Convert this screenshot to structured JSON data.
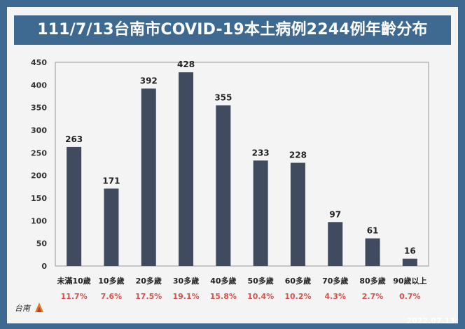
{
  "title": "111/7/13台南市COVID-19本土病例2244例年齡分布",
  "date_stamp": "2022.07.13",
  "colors": {
    "background": "#3e6a91",
    "panel": "#f4f4f4",
    "bar": "#404b60",
    "percent": "#d9534f",
    "axis_text": "#333333"
  },
  "chart_data": {
    "type": "bar",
    "title": "111/7/13台南市COVID-19本土病例2244例年齡分布",
    "categories": [
      "未滿10歲",
      "10多歲",
      "20多歲",
      "30多歲",
      "40多歲",
      "50多歲",
      "60多歲",
      "70多歲",
      "80多歲",
      "90歲以上"
    ],
    "values": [
      263,
      171,
      392,
      428,
      355,
      233,
      228,
      97,
      61,
      16
    ],
    "percentages": [
      "11.7%",
      "7.6%",
      "17.5%",
      "19.1%",
      "15.8%",
      "10.4%",
      "10.2%",
      "4.3%",
      "2.7%",
      "0.7%"
    ],
    "ylim": [
      0,
      450
    ],
    "yticks": [
      0,
      50,
      100,
      150,
      200,
      250,
      300,
      350,
      400,
      450
    ],
    "grid": false,
    "legend": "none"
  }
}
